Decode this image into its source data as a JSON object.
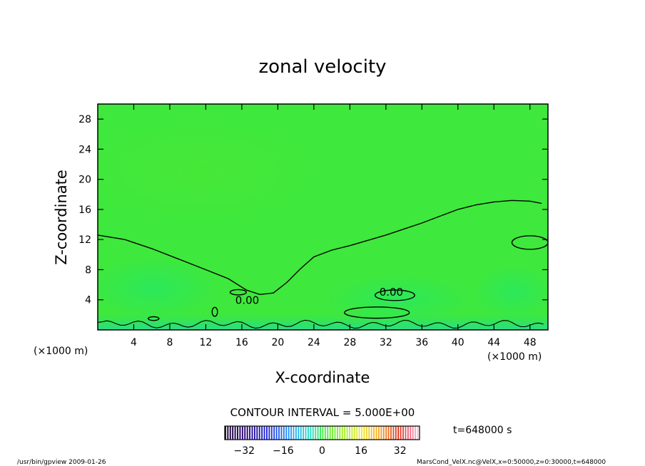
{
  "chart_data": {
    "type": "heatmap",
    "title": "zonal velocity",
    "xlabel": "X-coordinate",
    "ylabel": "Z-coordinate",
    "x_unit": "(×1000 m)",
    "y_unit": "(×1000 m)",
    "xlim": [
      0,
      50
    ],
    "ylim": [
      0,
      30
    ],
    "x_ticks": [
      4,
      8,
      12,
      16,
      20,
      24,
      28,
      32,
      36,
      40,
      44,
      48
    ],
    "y_ticks": [
      4,
      8,
      12,
      16,
      20,
      24,
      28
    ],
    "contour_interval": "CONTOUR INTERVAL = 5.000E+00",
    "contour_labels": [
      {
        "text": "0.00",
        "x": 16.6,
        "z": 4.0
      },
      {
        "text": "0.00",
        "x": 32.6,
        "z": 5.1
      }
    ],
    "zero_contour": [
      [
        0,
        12.6
      ],
      [
        3,
        12.0
      ],
      [
        6,
        10.8
      ],
      [
        9,
        9.4
      ],
      [
        12,
        8.0
      ],
      [
        14.5,
        6.8
      ],
      [
        16.5,
        5.3
      ],
      [
        18,
        4.7
      ],
      [
        19.5,
        4.9
      ],
      [
        21,
        6.3
      ],
      [
        22.5,
        8.1
      ],
      [
        24,
        9.7
      ],
      [
        26,
        10.6
      ],
      [
        28,
        11.2
      ],
      [
        30,
        11.9
      ],
      [
        32,
        12.6
      ],
      [
        34,
        13.4
      ],
      [
        36,
        14.2
      ],
      [
        38,
        15.1
      ],
      [
        40,
        16.0
      ],
      [
        42,
        16.6
      ],
      [
        44,
        17.0
      ],
      [
        46,
        17.2
      ],
      [
        48,
        17.1
      ],
      [
        49.3,
        16.8
      ]
    ],
    "colorbar": {
      "ticks": [
        -32,
        -16,
        0,
        16,
        32
      ],
      "range": [
        -40,
        40
      ],
      "field_value_hint": 0
    },
    "time_label": "t=648000 s"
  },
  "footer": {
    "left": "/usr/bin/gpview   2009-01-26",
    "right": "MarsCond_VelX.nc@VelX,x=0:50000,z=0:30000,t=648000"
  }
}
